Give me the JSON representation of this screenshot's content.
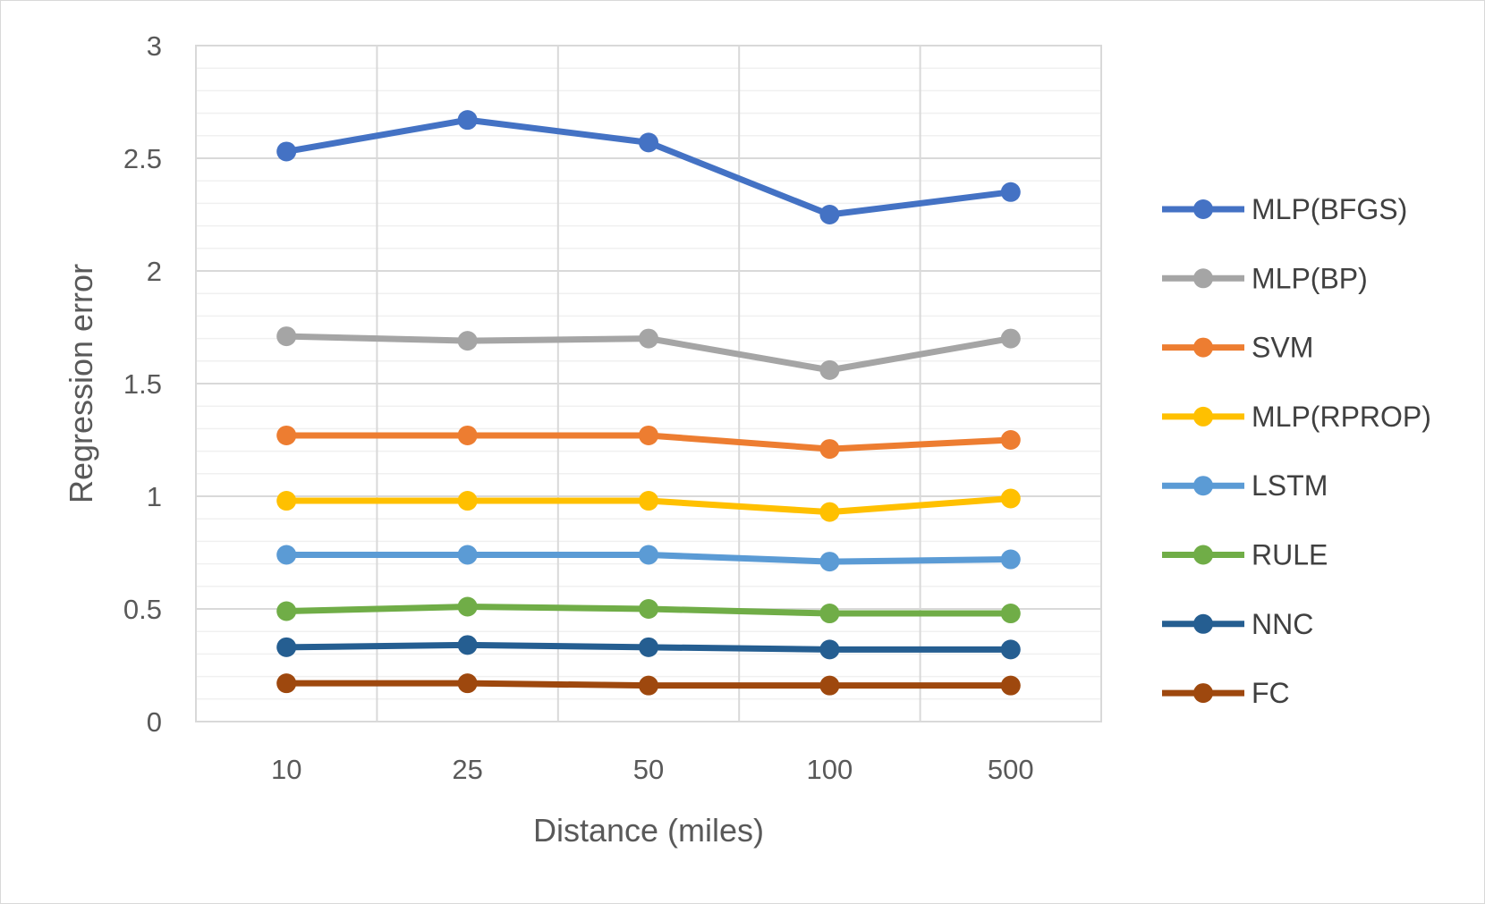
{
  "chart_data": {
    "type": "line",
    "title": "",
    "xlabel": "Distance (miles)",
    "ylabel": "Regression error",
    "categories": [
      "10",
      "25",
      "50",
      "100",
      "500"
    ],
    "ylim": [
      0,
      3
    ],
    "yticks": [
      "0",
      "0.5",
      "1",
      "1.5",
      "2",
      "2.5",
      "3"
    ],
    "ytick_values": [
      0,
      0.5,
      1,
      1.5,
      2,
      2.5,
      3
    ],
    "grid": true,
    "legend_position": "right",
    "series": [
      {
        "name": "MLP(BFGS)",
        "color": "#4472C4",
        "values": [
          2.53,
          2.67,
          2.57,
          2.25,
          2.35
        ]
      },
      {
        "name": "MLP(BP)",
        "color": "#A5A5A5",
        "values": [
          1.71,
          1.69,
          1.7,
          1.56,
          1.7
        ]
      },
      {
        "name": "SVM",
        "color": "#ED7D31",
        "values": [
          1.27,
          1.27,
          1.27,
          1.21,
          1.25
        ]
      },
      {
        "name": "MLP(RPROP)",
        "color": "#FFC000",
        "values": [
          0.98,
          0.98,
          0.98,
          0.93,
          0.99
        ]
      },
      {
        "name": "LSTM",
        "color": "#5B9BD5",
        "values": [
          0.74,
          0.74,
          0.74,
          0.71,
          0.72
        ]
      },
      {
        "name": "RULE",
        "color": "#70AD47",
        "values": [
          0.49,
          0.51,
          0.5,
          0.48,
          0.48
        ]
      },
      {
        "name": "NNC",
        "color": "#255E91",
        "values": [
          0.33,
          0.34,
          0.33,
          0.32,
          0.32
        ]
      },
      {
        "name": "FC",
        "color": "#9E480E",
        "values": [
          0.17,
          0.17,
          0.16,
          0.16,
          0.16
        ]
      }
    ]
  }
}
